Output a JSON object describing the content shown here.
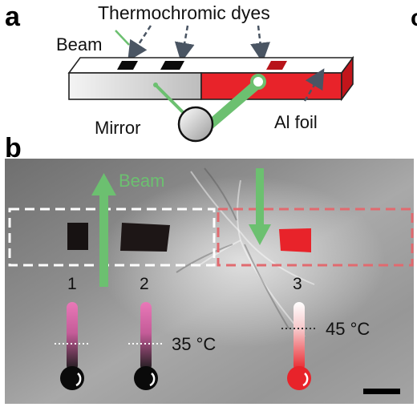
{
  "panel_a": {
    "label": "a",
    "dyes_label": "Thermochromic dyes",
    "beam_label": "Beam",
    "mirror_label": "Mirror",
    "foil_label": "Al foil"
  },
  "panel_b": {
    "label": "b",
    "beam_label": "Beam",
    "thermometers": [
      {
        "number": "1",
        "temp": "",
        "fill_color": "#000000",
        "fill_fraction": 0.45
      },
      {
        "number": "2",
        "temp": "35 °C",
        "fill_color": "#000000",
        "fill_fraction": 0.45
      },
      {
        "number": "3",
        "temp": "45 °C",
        "fill_color": "#e8232a",
        "fill_fraction": 0.45
      }
    ]
  },
  "next_panel_stub": "c",
  "colors": {
    "red": "#e8232a",
    "green": "#6cc070",
    "dark_arrow": "#4a5563",
    "pink": "#e978b8"
  }
}
